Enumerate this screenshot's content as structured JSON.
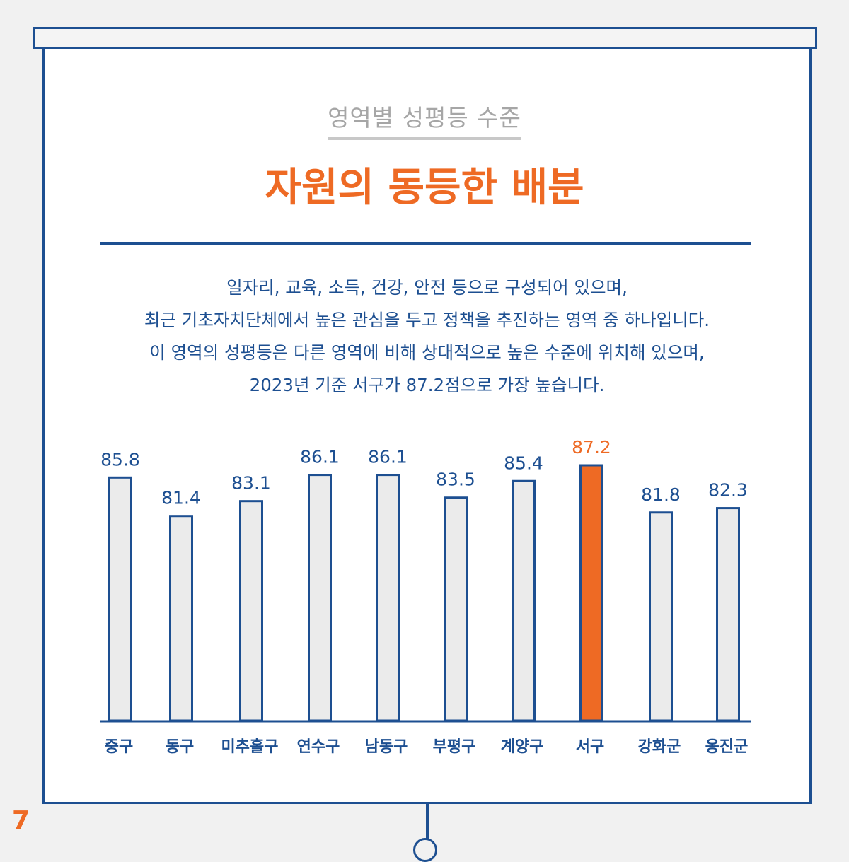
{
  "header": {
    "subtitle": "영역별 성평등 수준",
    "title": "자원의 동등한 배분"
  },
  "description": {
    "lines": [
      "일자리, 교육, 소득, 건강, 안전 등으로 구성되어 있으며,",
      "최근 기초자치단체에서 높은 관심을 두고 정책을 추진하는 영역 중 하나입니다.",
      "이 영역의 성평등은 다른 영역에 비해 상대적으로 높은 수준에 위치해 있으며,",
      "2023년 기준 서구가 87.2점으로 가장 높습니다."
    ]
  },
  "chart_data": {
    "type": "bar",
    "categories": [
      "중구",
      "동구",
      "미추홀구",
      "연수구",
      "남동구",
      "부평구",
      "계양구",
      "서구",
      "강화군",
      "옹진군"
    ],
    "values": [
      85.8,
      81.4,
      83.1,
      86.1,
      86.1,
      83.5,
      85.4,
      87.2,
      81.8,
      82.3
    ],
    "data_labels": [
      "85.8",
      "81.4",
      "83.1",
      "86.1",
      "86.1",
      "83.5",
      "85.4",
      "87.2",
      "81.8",
      "82.3"
    ],
    "highlight": "서구",
    "ylim": [
      58,
      88
    ],
    "grid": false,
    "legend": "none",
    "colors": {
      "bar_fill": "#ebebeb",
      "bar_stroke": "#1d4f91",
      "highlight_fill": "#ee6a24",
      "label": "#1d4f91",
      "highlight_label": "#ee6a24"
    }
  },
  "page_number": "7",
  "colors": {
    "accent": "#ee6a24",
    "primary": "#1d4f91",
    "muted": "#a6a6a6"
  }
}
